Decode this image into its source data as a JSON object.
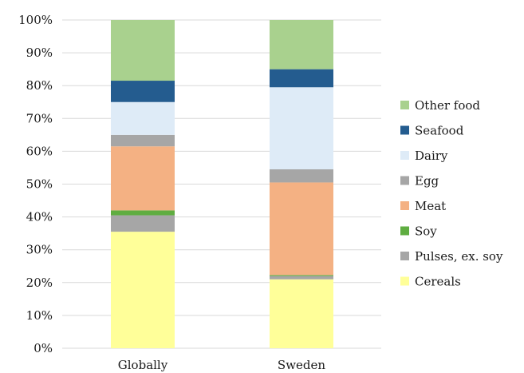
{
  "chart_data": {
    "type": "bar",
    "stacked": true,
    "percent": true,
    "categories": [
      "Globally",
      "Sweden"
    ],
    "ylim": [
      0,
      100
    ],
    "yticks": [
      "0%",
      "10%",
      "20%",
      "30%",
      "40%",
      "50%",
      "60%",
      "70%",
      "80%",
      "90%",
      "100%"
    ],
    "grid": true,
    "legend_position": "right",
    "series": [
      {
        "name": "Cereals",
        "color": "#ffff99",
        "values": [
          35.5,
          21
        ]
      },
      {
        "name": "Pulses, ex. soy",
        "color": "#a6a6a6",
        "values": [
          5,
          1
        ]
      },
      {
        "name": "Soy",
        "color": "#5fad41",
        "values": [
          1.5,
          0.3
        ]
      },
      {
        "name": "Meat",
        "color": "#f4b183",
        "values": [
          19.5,
          28.2
        ]
      },
      {
        "name": "Egg",
        "color": "#a6a6a6",
        "values": [
          3.5,
          4
        ]
      },
      {
        "name": "Dairy",
        "color": "#deebf7",
        "values": [
          10,
          25
        ]
      },
      {
        "name": "Seafood",
        "color": "#245c8f",
        "values": [
          6.5,
          5.5
        ]
      },
      {
        "name": "Other food",
        "color": "#a9d18e",
        "values": [
          18.5,
          15
        ]
      }
    ]
  }
}
